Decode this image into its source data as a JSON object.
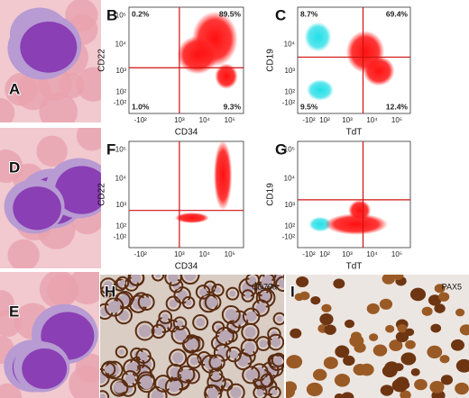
{
  "micrographs": [
    {
      "label": "A"
    },
    {
      "label": "D"
    },
    {
      "label": "E"
    }
  ],
  "flow_plots": [
    {
      "label": "B",
      "y_axis": "CD22",
      "x_axis": "CD34",
      "y_ticks": [
        "-10²",
        "10²",
        "10³",
        "10⁴",
        "10⁵"
      ],
      "x_ticks": [
        "-10²",
        "10³",
        "10⁴",
        "10⁵"
      ],
      "quadrants": {
        "upper_left": "0.2%",
        "upper_right": "89.5%",
        "lower_left": "1.0%",
        "lower_right": "9.3%"
      }
    },
    {
      "label": "C",
      "y_axis": "CD19",
      "x_axis": "TdT",
      "y_ticks": [
        "-10²",
        "10²",
        "10³",
        "10⁴"
      ],
      "x_ticks": [
        "-10²",
        "10²",
        "10³",
        "10⁴",
        "10⁵"
      ],
      "quadrants": {
        "upper_left": "8.7%",
        "upper_right": "69.4%",
        "lower_left": "9.5%",
        "lower_right": "12.4%"
      }
    },
    {
      "label": "F",
      "y_axis": "CD22",
      "x_axis": "CD34",
      "y_ticks": [
        "-10²",
        "10²",
        "10³",
        "10⁴",
        "10⁵"
      ],
      "x_ticks": [
        "-10²",
        "10³",
        "10⁴",
        "10⁵"
      ]
    },
    {
      "label": "G",
      "y_axis": "CD19",
      "x_axis": "TdT",
      "y_ticks": [
        "-10²",
        "10²",
        "10³",
        "10⁴",
        "10⁵"
      ],
      "x_ticks": [
        "-10²",
        "10²",
        "10³",
        "10⁴",
        "10⁵"
      ]
    }
  ],
  "stains": [
    {
      "label": "H",
      "marker": "CD79a"
    },
    {
      "label": "I",
      "marker": "PAX5"
    }
  ]
}
